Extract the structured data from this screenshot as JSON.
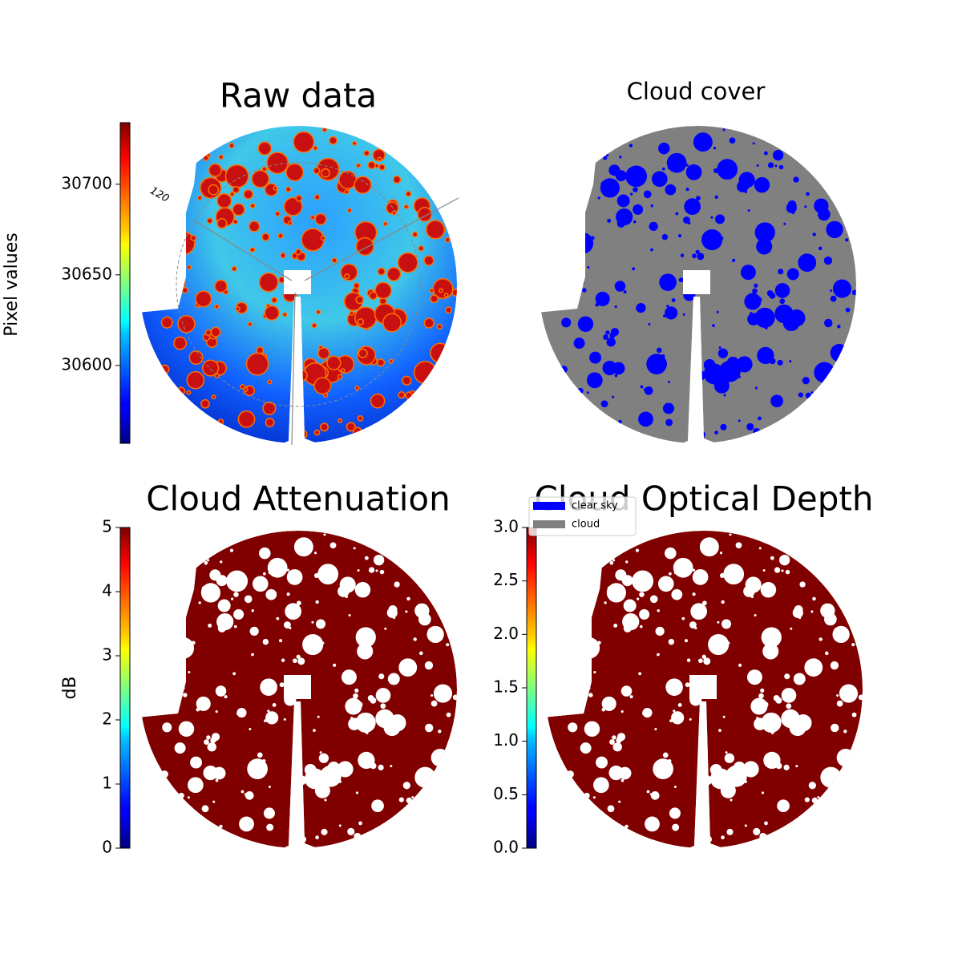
{
  "chart_data": [
    {
      "type": "image",
      "title": "Raw data",
      "colormap": "jet",
      "colorbar": {
        "label": "Pixel values",
        "ylim": [
          30557,
          30734
        ],
        "yticks": [
          30600,
          30650,
          30700
        ]
      },
      "annotations": [
        "120"
      ]
    },
    {
      "type": "image",
      "title": "Cloud cover",
      "series": [
        {
          "name": "clear sky",
          "color": "#0000ff"
        },
        {
          "name": "cloud",
          "color": "#808080"
        }
      ]
    },
    {
      "type": "image",
      "title": "Cloud Attenuation",
      "colormap": "jet",
      "color": "#800000",
      "colorbar": {
        "label": "dB",
        "ylim": [
          0,
          5
        ],
        "yticks": [
          0,
          1,
          2,
          3,
          4,
          5
        ]
      }
    },
    {
      "type": "image",
      "title": "Cloud Optical Depth",
      "colormap": "jet",
      "color": "#800000",
      "colorbar": {
        "ylim": [
          0,
          3
        ],
        "yticks": [
          {
            "value": 0,
            "label": "0.0"
          },
          0.5,
          {
            "value": 1,
            "label": "1.0"
          },
          1.5,
          {
            "value": 2,
            "label": "2.0"
          },
          2.5,
          {
            "value": 3,
            "label": "3.0"
          }
        ]
      }
    }
  ]
}
